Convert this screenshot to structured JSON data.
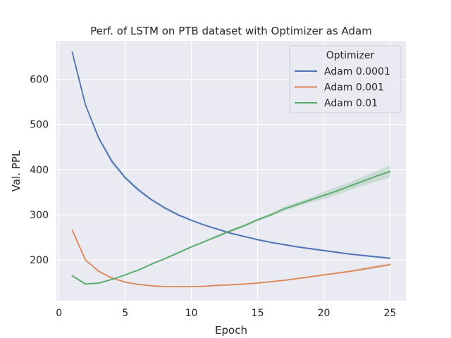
{
  "chart_data": {
    "type": "line",
    "title": "Perf. of LSTM on PTB dataset with Optimizer as Adam",
    "xlabel": "Epoch",
    "ylabel": "Val. PPL",
    "xlim": [
      -0.2,
      26.2
    ],
    "ylim": [
      110,
      685
    ],
    "xticks": [
      0,
      5,
      10,
      15,
      20,
      25
    ],
    "yticks": [
      200,
      300,
      400,
      500,
      600
    ],
    "grid": true,
    "legend": {
      "title": "Optimizer",
      "placement": "top-right"
    },
    "x": [
      1,
      2,
      3,
      4,
      5,
      6,
      7,
      8,
      9,
      10,
      11,
      12,
      13,
      14,
      15,
      16,
      17,
      18,
      19,
      20,
      21,
      22,
      23,
      24,
      25
    ],
    "series": [
      {
        "name": "Adam 0.0001",
        "color": "#4c72b0",
        "values": [
          660,
          543,
          470,
          418,
          382,
          355,
          333,
          315,
          300,
          288,
          277,
          268,
          259,
          252,
          245,
          239,
          234,
          229,
          225,
          221,
          217,
          213,
          210,
          207,
          204
        ],
        "band": [
          0,
          3,
          4,
          5,
          4,
          4,
          3,
          3,
          3,
          2,
          2,
          2,
          2,
          2,
          2,
          2,
          2,
          2,
          2,
          2,
          2,
          2,
          2,
          2,
          2
        ]
      },
      {
        "name": "Adam 0.001",
        "color": "#dd8452",
        "values": [
          266,
          200,
          175,
          160,
          151,
          146,
          143,
          141,
          141,
          141,
          142,
          144,
          145,
          147,
          149,
          152,
          155,
          159,
          163,
          167,
          171,
          175,
          180,
          185,
          190
        ],
        "band": [
          0,
          1,
          1,
          1,
          1,
          1,
          1,
          1,
          1,
          1,
          1,
          1,
          1,
          1,
          1,
          1,
          1,
          2,
          2,
          2,
          2,
          2,
          3,
          3,
          3
        ]
      },
      {
        "name": "Adam 0.01",
        "color": "#55a868",
        "values": [
          165,
          147,
          149,
          157,
          167,
          178,
          191,
          203,
          216,
          229,
          241,
          253,
          265,
          276,
          289,
          300,
          313,
          323,
          333,
          343,
          353,
          364,
          375,
          386,
          396
        ],
        "band": [
          0,
          1,
          1,
          1,
          1,
          1,
          1,
          2,
          2,
          2,
          2,
          3,
          3,
          3,
          3,
          4,
          5,
          5,
          6,
          8,
          9,
          9,
          10,
          12,
          14
        ]
      }
    ]
  }
}
